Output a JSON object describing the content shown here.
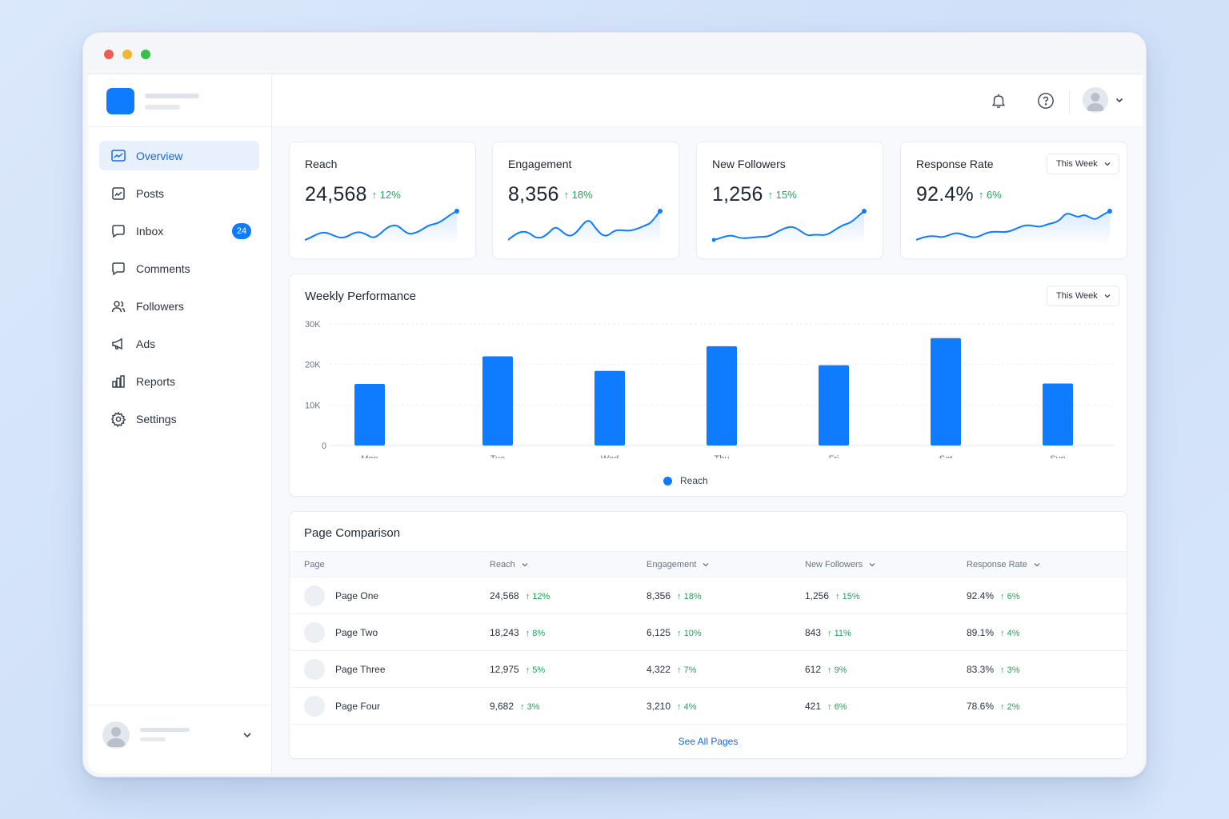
{
  "nav": {
    "items": [
      {
        "label": "Overview",
        "icon": "overview-icon"
      },
      {
        "label": "Posts",
        "icon": "posts-icon"
      },
      {
        "label": "Inbox",
        "icon": "inbox-icon",
        "badge": "24"
      },
      {
        "label": "Comments",
        "icon": "comments-icon"
      },
      {
        "label": "Followers",
        "icon": "followers-icon"
      },
      {
        "label": "Ads",
        "icon": "megaphone-icon"
      },
      {
        "label": "Reports",
        "icon": "bar-chart-icon"
      },
      {
        "label": "Settings",
        "icon": "gear-icon"
      }
    ]
  },
  "topbar": {
    "icons": [
      "bell-icon",
      "help-icon",
      "avatar",
      "chevron-down-icon"
    ]
  },
  "kpis": [
    {
      "title": "Reach",
      "value": "24,568",
      "delta": "↑ 12%"
    },
    {
      "title": "Engagement",
      "value": "8,356",
      "delta": "↑ 18%"
    },
    {
      "title": "New Followers",
      "value": "1,256",
      "delta": "↑ 15%"
    },
    {
      "title": "Response Rate",
      "value": "92.4%",
      "delta": "↑ 6%",
      "filter": "This Week"
    }
  ],
  "performance": {
    "title": "Weekly Performance",
    "filter": "This Week",
    "legend": "Reach"
  },
  "chart_data": {
    "type": "bar",
    "categories": [
      "Mon",
      "Tue",
      "Wed",
      "Thu",
      "Fri",
      "Sat",
      "Sun"
    ],
    "series": [
      {
        "name": "Reach",
        "values": [
          15200,
          22000,
          18400,
          24500,
          19800,
          26500,
          15300
        ]
      }
    ],
    "yticks": [
      "0",
      "10K",
      "20K",
      "30K"
    ],
    "ylim": [
      0,
      30000
    ],
    "grid": true,
    "legend_position": "bottom",
    "color": "#0f7bff"
  },
  "comparison": {
    "title": "Page Comparison",
    "columns": [
      "Page",
      "Reach",
      "Engagement",
      "New Followers",
      "Response Rate"
    ],
    "rows": [
      {
        "page": "Page One",
        "reach": "24,568",
        "reach_d": "↑ 12%",
        "eng": "8,356",
        "eng_d": "↑ 18%",
        "fol": "1,256",
        "fol_d": "↑ 15%",
        "rr": "92.4%",
        "rr_d": "↑ 6%"
      },
      {
        "page": "Page Two",
        "reach": "18,243",
        "reach_d": "↑ 8%",
        "eng": "6,125",
        "eng_d": "↑ 10%",
        "fol": "843",
        "fol_d": "↑ 11%",
        "rr": "89.1%",
        "rr_d": "↑ 4%"
      },
      {
        "page": "Page Three",
        "reach": "12,975",
        "reach_d": "↑ 5%",
        "eng": "4,322",
        "eng_d": "↑ 7%",
        "fol": "612",
        "fol_d": "↑ 9%",
        "rr": "83.3%",
        "rr_d": "↑ 3%"
      },
      {
        "page": "Page Four",
        "reach": "9,682",
        "reach_d": "↑ 3%",
        "eng": "3,210",
        "eng_d": "↑ 4%",
        "fol": "421",
        "fol_d": "↑ 6%",
        "rr": "78.6%",
        "rr_d": "↑ 2%"
      }
    ],
    "see_all": "See All Pages"
  },
  "colors": {
    "accent": "#0f7bff",
    "positive": "#21a35a"
  }
}
